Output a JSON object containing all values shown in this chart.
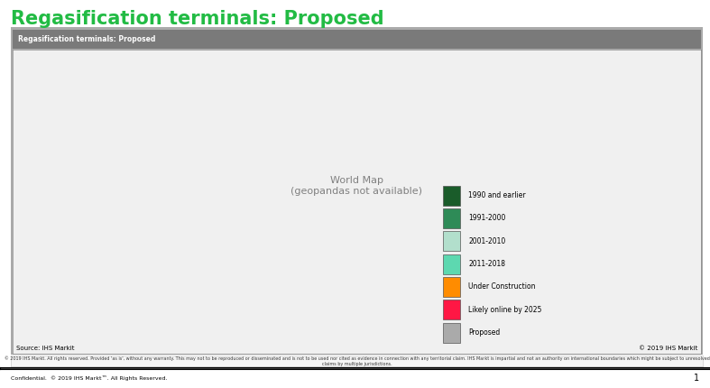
{
  "title": "Regasification terminals: Proposed",
  "subtitle": "Regasification terminals: Proposed",
  "title_color": "#22BB44",
  "title_fontsize": 15,
  "background_color": "#FFFFFF",
  "header_bar_color": "#7A7A7A",
  "map_border_color": "#888888",
  "ocean_color": "#FFFFFF",
  "land_default_color": "#F0F0F0",
  "source_text": "Source: IHS Markit",
  "copyright_text": "© 2019 IHS Markit",
  "footer_text": "© 2019 IHS Markt. All rights reserved. Provided 'as is', without any warranty. This may not to be reproduced or disseminated and is not to be used nor cited as evidence in connection with any territorial claim. IHS Markt is impartial and not an authority on international boundaries which might be subject to unresolved claims by multiple jurisdictions.",
  "confidential_text": "Confidential.  © 2019 IHS Markt™. All Rights Reserved.",
  "page_number": "1",
  "legend_items": [
    {
      "label": "1990 and earlier",
      "color": "#1A5C2A"
    },
    {
      "label": "1991-2000",
      "color": "#2E8B57"
    },
    {
      "label": "2001-2010",
      "color": "#B2DFCC"
    },
    {
      "label": "2011-2018",
      "color": "#5DD8B0"
    },
    {
      "label": "Under Construction",
      "color": "#FF8C00"
    },
    {
      "label": "Likely online by 2025",
      "color": "#FF1744"
    },
    {
      "label": "Proposed",
      "color": "#AAAAAA"
    }
  ],
  "country_colors": {
    "United States of America": "#1A5C2A",
    "Canada": "#B2DFCC",
    "Mexico": "#B2DFCC",
    "Brazil": "#5DD8B0",
    "Argentina": "#5DD8B0",
    "Chile": "#5DD8B0",
    "Colombia": "#B2DFCC",
    "Venezuela": "#B2DFCC",
    "Peru": "#5DD8B0",
    "Uruguay": "#5DD8B0",
    "Ecuador": "#5DD8B0",
    "United Kingdom": "#2E8B57",
    "France": "#2E8B57",
    "Spain": "#1A5C2A",
    "Portugal": "#2E8B57",
    "Belgium": "#2E8B57",
    "Netherlands": "#2E8B57",
    "Germany": "#2E8B57",
    "Italy": "#2E8B57",
    "Greece": "#2E8B57",
    "Turkey": "#5DD8B0",
    "Poland": "#5DD8B0",
    "Lithuania": "#5DD8B0",
    "Finland": "#5DD8B0",
    "Croatia": "#5DD8B0",
    "Sweden": "#5DD8B0",
    "Norway": "#5DD8B0",
    "Denmark": "#5DD8B0",
    "Russia": "#FF8C00",
    "China": "#B2DFCC",
    "Japan": "#1A5C2A",
    "South Korea": "#2E8B57",
    "Republic of Korea": "#2E8B57",
    "India": "#B2DFCC",
    "Taiwan": "#2E8B57",
    "Pakistan": "#5DD8B0",
    "Bangladesh": "#5DD8B0",
    "Indonesia": "#5DD8B0",
    "Malaysia": "#5DD8B0",
    "Philippines": "#5DD8B0",
    "Thailand": "#5DD8B0",
    "Singapore": "#2E8B57",
    "Vietnam": "#5DD8B0",
    "Myanmar": "#5DD8B0",
    "Egypt": "#2E8B57",
    "Nigeria": "#FF8C00",
    "South Africa": "#FF1744",
    "Australia": "#FF1744",
    "New Zealand": "#AAAAAA",
    "Ghana": "#FF1744",
    "Kuwait": "#2E8B57",
    "United Arab Emirates": "#2E8B57",
    "Qatar": "#2E8B57",
    "Jordan": "#5DD8B0",
    "Israel": "#5DD8B0",
    "Morocco": "#5DD8B0",
    "Algeria": "#AAAAAA",
    "Libya": "#AAAAAA",
    "Sudan": "#AAAAAA",
    "Kazakhstan": "#B2DFCC",
    "Iran": "#AAAAAA",
    "Iraq": "#AAAAAA",
    "Saudi Arabia": "#AAAAAA",
    "Yemen": "#AAAAAA",
    "Oman": "#AAAAAA",
    "Bahrain": "#2E8B57"
  }
}
